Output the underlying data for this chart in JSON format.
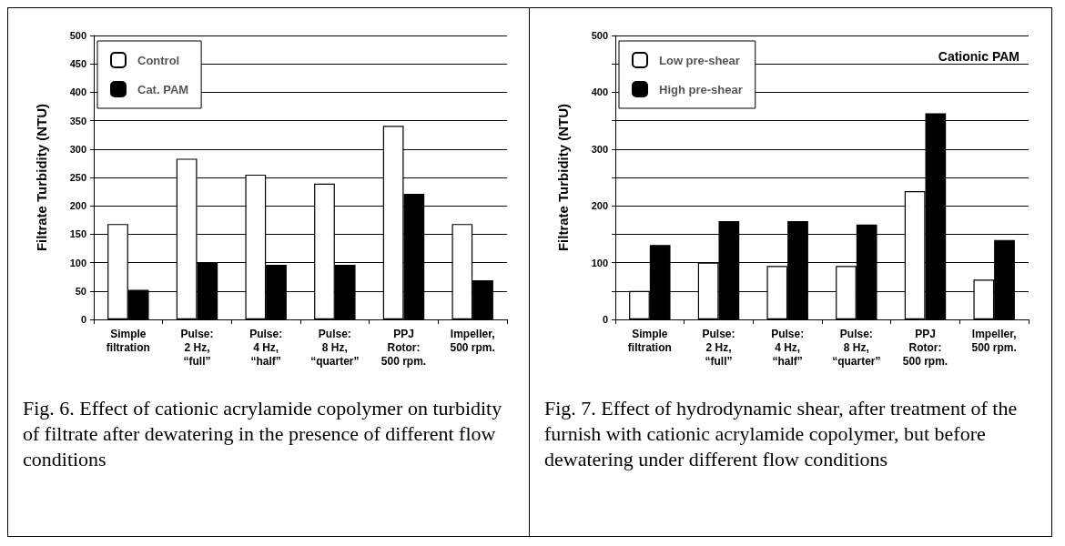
{
  "chart_data": [
    {
      "type": "bar",
      "ylabel": "Filtrate Turbidity (NTU)",
      "categories": [
        "Simple\nfiltration",
        "Pulse:\n2 Hz,\n“full”",
        "Pulse:\n4 Hz,\n“half”",
        "Pulse:\n8 Hz,\n“quarter”",
        "PPJ\nRotor:\n500 rpm.",
        "Impeller,\n500 rpm."
      ],
      "series": [
        {
          "name": "Control",
          "color": "#ffffff",
          "values": [
            168,
            283,
            255,
            239,
            341,
            168
          ]
        },
        {
          "name": "Cat. PAM",
          "color": "#000000",
          "values": [
            52,
            101,
            96,
            96,
            221,
            69
          ]
        }
      ],
      "ylim": [
        0,
        500
      ],
      "yticks": [
        0,
        50,
        100,
        150,
        200,
        250,
        300,
        350,
        400,
        450,
        500
      ],
      "grid": "y",
      "legend": "top left",
      "annotations": [
        "Fig. 6.  Effect of cationic acrylamide copolymer on turbidity of filtrate after dewatering in the presence of different flow conditions"
      ]
    },
    {
      "type": "bar",
      "ylabel": "Filtrate Turbidity (NTU)",
      "categories": [
        "Simple\nfiltration",
        "Pulse:\n2 Hz,\n“full”",
        "Pulse:\n4 Hz,\n“half”",
        "Pulse:\n8 Hz,\n“quarter”",
        "PPJ\nRotor:\n500 rpm.",
        "Impeller,\n500 rpm."
      ],
      "series": [
        {
          "name": "Low pre-shear",
          "color": "#ffffff",
          "values": [
            50,
            100,
            94,
            94,
            226,
            70
          ]
        },
        {
          "name": "High pre-shear",
          "color": "#000000",
          "values": [
            131,
            173,
            173,
            167,
            363,
            140
          ]
        }
      ],
      "ylim": [
        0,
        500
      ],
      "yticks": [
        0,
        {
          "value": 50,
          "label": null
        },
        100,
        {
          "value": 150,
          "label": null
        },
        200,
        {
          "value": 250,
          "label": null
        },
        300,
        {
          "value": 350,
          "label": null
        },
        400,
        {
          "value": 450,
          "label": null
        },
        500
      ],
      "grid": "y",
      "legend": "top left",
      "annotations": [
        "Cationic PAM",
        "Fig. 7.  Effect of hydrodynamic shear, after treatment of the furnish with cationic acrylamide copolymer, but before dewatering under different flow conditions"
      ]
    }
  ]
}
